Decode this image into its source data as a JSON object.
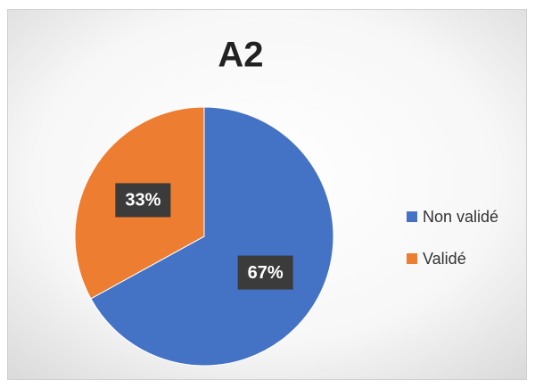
{
  "chart_data": {
    "type": "pie",
    "title": "A2",
    "categories": [
      "Non validé",
      "Validé"
    ],
    "values": [
      67,
      33
    ],
    "value_labels": [
      "67%",
      "33%"
    ],
    "colors": [
      "#4472c4",
      "#ed7d31"
    ],
    "legend": "right"
  }
}
